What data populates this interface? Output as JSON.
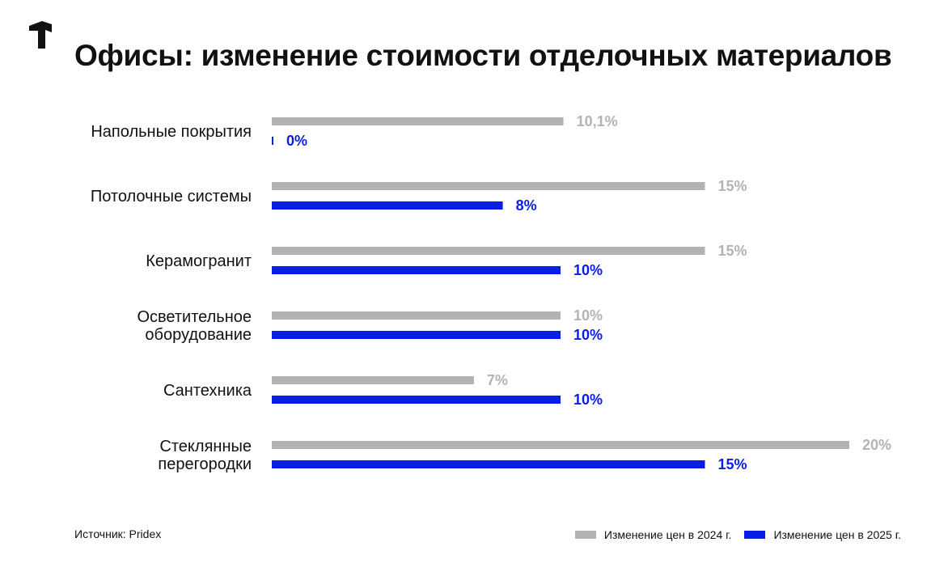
{
  "title": "Офисы: изменение стоимости отделочных материалов",
  "source": "Источник: Pridex",
  "colors": {
    "series_2024": "#b3b3b3",
    "series_2025": "#0a1de8",
    "text": "#111111"
  },
  "logo": "brand-logo",
  "legend": [
    {
      "label": "Изменение цен в 2024 г.",
      "color": "#b3b3b3"
    },
    {
      "label": "Изменение цен в 2025 г.",
      "color": "#0a1de8"
    }
  ],
  "chart_data": {
    "type": "bar",
    "orientation": "horizontal",
    "title": "Офисы: изменение стоимости отделочных материалов",
    "categories": [
      [
        "Напольные покрытия"
      ],
      [
        "Потолочные системы"
      ],
      [
        "Керамогранит"
      ],
      [
        "Осветительное",
        "оборудование"
      ],
      [
        "Сантехника"
      ],
      [
        "Стеклянные",
        "перегородки"
      ]
    ],
    "series": [
      {
        "name": "Изменение цен в 2024 г.",
        "color": "#b3b3b3",
        "values": [
          10.1,
          15,
          15,
          10,
          7,
          20
        ],
        "labels": [
          "10,1%",
          "15%",
          "15%",
          "10%",
          "7%",
          "20%"
        ]
      },
      {
        "name": "Изменение цен в 2025 г.",
        "color": "#0a1de8",
        "values": [
          0,
          8,
          10,
          10,
          10,
          15
        ],
        "labels": [
          "0%",
          "8%",
          "10%",
          "10%",
          "10%",
          "15%"
        ]
      }
    ],
    "xlim": [
      0,
      20
    ],
    "grid": false,
    "legend_position": "bottom-right"
  }
}
